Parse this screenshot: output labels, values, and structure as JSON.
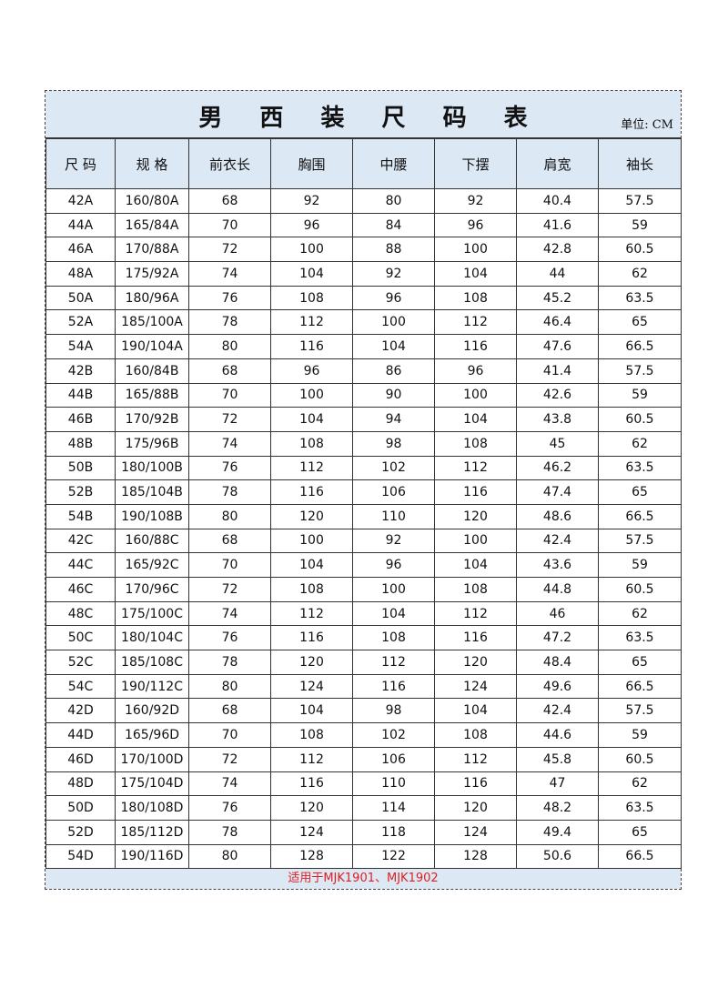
{
  "title": "男 西 装 尺 码 表",
  "unit": "单位: CM",
  "headers": [
    "尺 码",
    "规 格",
    "前衣长",
    "胸围",
    "中腰",
    "下摆",
    "肩宽",
    "袖长"
  ],
  "rows": [
    [
      "42A",
      "160/80A",
      "68",
      "92",
      "80",
      "92",
      "40.4",
      "57.5"
    ],
    [
      "44A",
      "165/84A",
      "70",
      "96",
      "84",
      "96",
      "41.6",
      "59"
    ],
    [
      "46A",
      "170/88A",
      "72",
      "100",
      "88",
      "100",
      "42.8",
      "60.5"
    ],
    [
      "48A",
      "175/92A",
      "74",
      "104",
      "92",
      "104",
      "44",
      "62"
    ],
    [
      "50A",
      "180/96A",
      "76",
      "108",
      "96",
      "108",
      "45.2",
      "63.5"
    ],
    [
      "52A",
      "185/100A",
      "78",
      "112",
      "100",
      "112",
      "46.4",
      "65"
    ],
    [
      "54A",
      "190/104A",
      "80",
      "116",
      "104",
      "116",
      "47.6",
      "66.5"
    ],
    [
      "42B",
      "160/84B",
      "68",
      "96",
      "86",
      "96",
      "41.4",
      "57.5"
    ],
    [
      "44B",
      "165/88B",
      "70",
      "100",
      "90",
      "100",
      "42.6",
      "59"
    ],
    [
      "46B",
      "170/92B",
      "72",
      "104",
      "94",
      "104",
      "43.8",
      "60.5"
    ],
    [
      "48B",
      "175/96B",
      "74",
      "108",
      "98",
      "108",
      "45",
      "62"
    ],
    [
      "50B",
      "180/100B",
      "76",
      "112",
      "102",
      "112",
      "46.2",
      "63.5"
    ],
    [
      "52B",
      "185/104B",
      "78",
      "116",
      "106",
      "116",
      "47.4",
      "65"
    ],
    [
      "54B",
      "190/108B",
      "80",
      "120",
      "110",
      "120",
      "48.6",
      "66.5"
    ],
    [
      "42C",
      "160/88C",
      "68",
      "100",
      "92",
      "100",
      "42.4",
      "57.5"
    ],
    [
      "44C",
      "165/92C",
      "70",
      "104",
      "96",
      "104",
      "43.6",
      "59"
    ],
    [
      "46C",
      "170/96C",
      "72",
      "108",
      "100",
      "108",
      "44.8",
      "60.5"
    ],
    [
      "48C",
      "175/100C",
      "74",
      "112",
      "104",
      "112",
      "46",
      "62"
    ],
    [
      "50C",
      "180/104C",
      "76",
      "116",
      "108",
      "116",
      "47.2",
      "63.5"
    ],
    [
      "52C",
      "185/108C",
      "78",
      "120",
      "112",
      "120",
      "48.4",
      "65"
    ],
    [
      "54C",
      "190/112C",
      "80",
      "124",
      "116",
      "124",
      "49.6",
      "66.5"
    ],
    [
      "42D",
      "160/92D",
      "68",
      "104",
      "98",
      "104",
      "42.4",
      "57.5"
    ],
    [
      "44D",
      "165/96D",
      "70",
      "108",
      "102",
      "108",
      "44.6",
      "59"
    ],
    [
      "46D",
      "170/100D",
      "72",
      "112",
      "106",
      "112",
      "45.8",
      "60.5"
    ],
    [
      "48D",
      "175/104D",
      "74",
      "116",
      "110",
      "116",
      "47",
      "62"
    ],
    [
      "50D",
      "180/108D",
      "76",
      "120",
      "114",
      "120",
      "48.2",
      "63.5"
    ],
    [
      "52D",
      "185/112D",
      "78",
      "124",
      "118",
      "124",
      "49.4",
      "65"
    ],
    [
      "54D",
      "190/116D",
      "80",
      "128",
      "122",
      "128",
      "50.6",
      "66.5"
    ]
  ],
  "footer": "适用于MJK1901、MJK1902",
  "colors": {
    "band": "#dce8f4",
    "footer_text": "#e02020",
    "border": "#333333"
  }
}
